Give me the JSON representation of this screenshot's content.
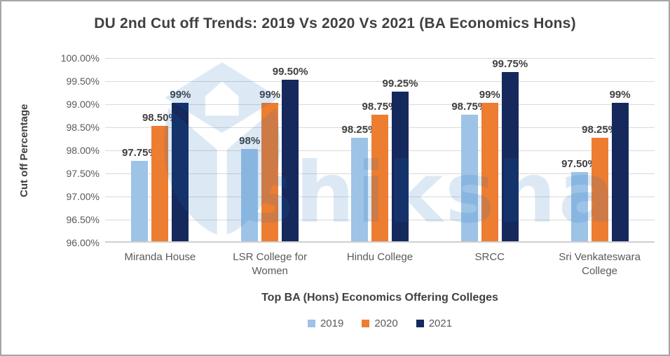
{
  "chart_data": {
    "type": "bar",
    "title": "DU 2nd Cut off Trends: 2019 Vs 2020 Vs 2021 (BA Economics Hons)",
    "xlabel": "Top BA (Hons) Economics Offering Colleges",
    "ylabel": "Cut off Percentage",
    "categories": [
      "Miranda House",
      "LSR College for Women",
      "Hindu College",
      "SRCC",
      "Sri Venkateswara College"
    ],
    "series": [
      {
        "name": "2019",
        "color": "#9DC3E6",
        "values": [
          97.75,
          98.0,
          98.25,
          98.75,
          97.5
        ],
        "labels": [
          "97.75%",
          "98%",
          "98.25%",
          "98.75%",
          "97.50%"
        ]
      },
      {
        "name": "2020",
        "color": "#ED7D31",
        "values": [
          98.5,
          99.0,
          98.75,
          99.0,
          98.25
        ],
        "labels": [
          "98.50%",
          "99%",
          "98.75%",
          "99%",
          "98.25%"
        ]
      },
      {
        "name": "2021",
        "color": "#15295C",
        "values": [
          99.0,
          99.5,
          99.25,
          99.75,
          99.0
        ],
        "labels": [
          "99%",
          "99.50%",
          "99.25%",
          "99.75%",
          "99%"
        ]
      }
    ],
    "ylim": [
      96,
      100
    ],
    "ytick_labels": [
      "100.00%",
      "99.50%",
      "99.00%",
      "98.50%",
      "98.00%",
      "97.50%",
      "97.00%",
      "96.50%",
      "96.00%"
    ],
    "grid": true,
    "legend_position": "bottom",
    "watermark_text": "shiksha",
    "watermark_color": "#1B6FC0"
  }
}
